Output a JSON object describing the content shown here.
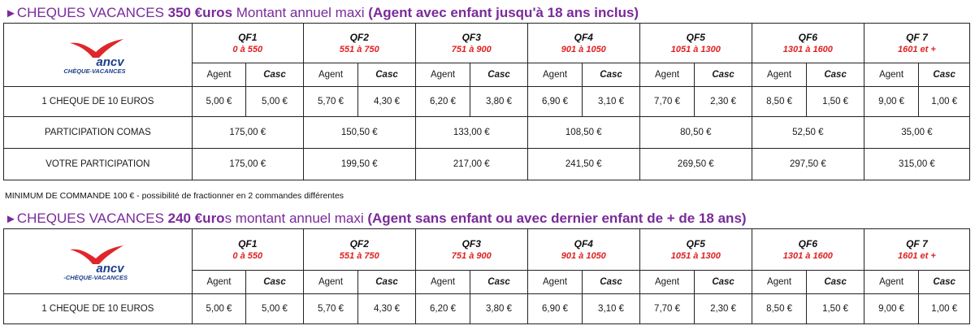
{
  "section1": {
    "arrow": "►",
    "title_part1": "CHEQUES VACANCES ",
    "title_bold": "350 €uros",
    "title_part2": " Montant annuel maxi  ",
    "title_condition": "(Agent avec enfant jusqu'à 18 ans inclus)"
  },
  "note": "MINIMUM DE COMMANDE 100 €  - possibilité de fractionner en 2 commandes différentes",
  "section2": {
    "arrow": "►",
    "title_part1": "CHEQUES VACANCES ",
    "title_bold": "240 €uro",
    "title_part2": "s montant annuel maxi ",
    "title_condition": "(Agent sans enfant ou avec dernier enfant de + de 18 ans)"
  },
  "logo": {
    "wordmark": "ancv",
    "tagline": "CHÈQUE-VACANCES",
    "tagline2": "-CHÈQUE-VACANCES",
    "bird_color": "#e0262a",
    "text_color": "#1c3f8a"
  },
  "qf_headers": [
    {
      "name": "QF1",
      "range": "0  à  550"
    },
    {
      "name": "QF2",
      "range": "551 à 750"
    },
    {
      "name": "QF3",
      "range": "751  à  900"
    },
    {
      "name": "QF4",
      "range": "901  à  1050"
    },
    {
      "name": "QF5",
      "range": "1051 à 1300"
    },
    {
      "name": "QF6",
      "range": "1301 à 1600"
    },
    {
      "name": "QF 7",
      "range": "1601 et +"
    }
  ],
  "sub_headers": {
    "agent": "Agent",
    "casc": "Casc"
  },
  "cheque_row": {
    "label": "1 CHEQUE DE 10 EUROS",
    "values": [
      {
        "agent": "5,00 €",
        "casc": "5,00 €"
      },
      {
        "agent": "5,70 €",
        "casc": "4,30 €"
      },
      {
        "agent": "6,20 €",
        "casc": "3,80 €"
      },
      {
        "agent": "6,90 €",
        "casc": "3,10 €"
      },
      {
        "agent": "7,70 €",
        "casc": "2,30 €"
      },
      {
        "agent": "8,50 €",
        "casc": "1,50 €"
      },
      {
        "agent": "9,00 €",
        "casc": "1,00 €"
      }
    ]
  },
  "participation_comas": {
    "label": "PARTICIPATION COMAS",
    "values": [
      "175,00 €",
      "150,50 €",
      "133,00 €",
      "108,50 €",
      "80,50 €",
      "52,50 €",
      "35,00 €"
    ]
  },
  "votre_participation": {
    "label": "VOTRE PARTICIPATION",
    "values": [
      "175,00 €",
      "199,50 €",
      "217,00 €",
      "241,50 €",
      "269,50 €",
      "297,50 €",
      "315,00 €"
    ]
  }
}
